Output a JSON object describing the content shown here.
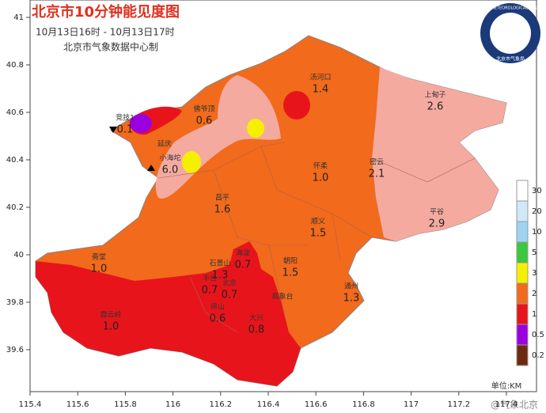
{
  "header": {
    "title": "北京市10分钟能见度图",
    "period": "10月13日16时 - 10月13日17时",
    "producer": "北京市气象数据中心制"
  },
  "logo": {
    "ring_text": "BEIJING METEOROLOGICAL SERVICE",
    "org": "北京市气象局"
  },
  "axes": {
    "lat_ticks": [
      41,
      40.8,
      40.6,
      40.4,
      40.2,
      40,
      39.8,
      39.6
    ],
    "lon_ticks": [
      115.4,
      115.6,
      115.8,
      116,
      116.2,
      116.4,
      116.6,
      116.8,
      117,
      117.2,
      117.4
    ]
  },
  "stations": [
    {
      "name": "汤河口",
      "value": "1.4"
    },
    {
      "name": "上甸子",
      "value": "2.6"
    },
    {
      "name": "佛爷顶",
      "value": "0.6"
    },
    {
      "name": "竞技1",
      "value": "0.1"
    },
    {
      "name": "小海坨",
      "value": "6.0"
    },
    {
      "name": "延庆",
      "value": ""
    },
    {
      "name": "怀柔",
      "value": "1.0"
    },
    {
      "name": "密云",
      "value": "2.1"
    },
    {
      "name": "昌平",
      "value": "1.6"
    },
    {
      "name": "平谷",
      "value": "2.9"
    },
    {
      "name": "顺义",
      "value": "1.5"
    },
    {
      "name": "斋堂",
      "value": "1.0"
    },
    {
      "name": "海淀",
      "value": "0.7"
    },
    {
      "name": "石景山",
      "value": "1.3"
    },
    {
      "name": "朝阳",
      "value": "1.5"
    },
    {
      "name": "丰台",
      "value": "0.7"
    },
    {
      "name": "北京",
      "value": "0.7"
    },
    {
      "name": "观象台",
      "value": ""
    },
    {
      "name": "通州",
      "value": "1.3"
    },
    {
      "name": "房山",
      "value": "0.6"
    },
    {
      "name": "大兴",
      "value": "0.8"
    },
    {
      "name": "霞云岭",
      "value": "1.0"
    }
  ],
  "legend": {
    "levels": [
      {
        "value": 30,
        "color": "#ffffff"
      },
      {
        "value": 20,
        "color": "#cfe9f7"
      },
      {
        "value": 10,
        "color": "#9fd4f0"
      },
      {
        "value": 5,
        "color": "#3cc83c"
      },
      {
        "value": 3,
        "color": "#f5f000"
      },
      {
        "value": 2,
        "color": "#f26a1b"
      },
      {
        "value": 1,
        "color": "#e8141c"
      },
      {
        "value": 0.5,
        "color": "#9a00e0"
      },
      {
        "value": 0.2,
        "color": "#6b2a10"
      }
    ],
    "unit": "单位:KM"
  },
  "watermark": "@气象北京"
}
